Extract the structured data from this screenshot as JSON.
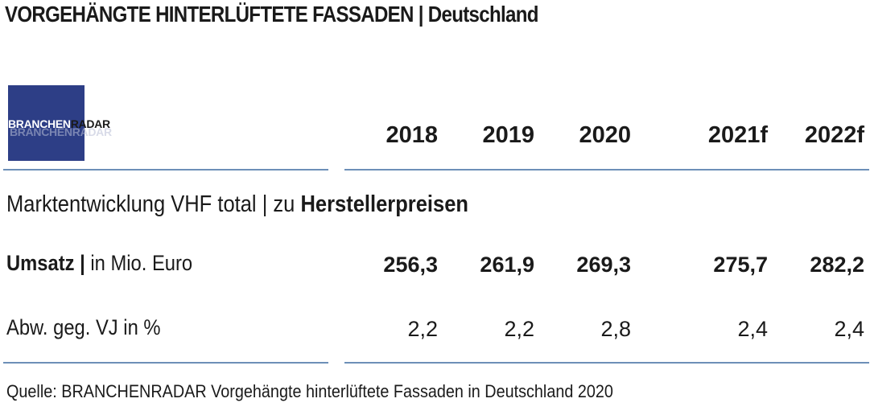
{
  "header": {
    "title_main": "VORGEHÄNGTE HINTERLÜFTETE FASSADEN",
    "title_sep": " | ",
    "title_region": "Deutschland"
  },
  "logo": {
    "part1": "BRANCHEN",
    "part2": "RADAR",
    "colors": {
      "box": "#2d3e86"
    }
  },
  "table": {
    "years": [
      "2018",
      "2019",
      "2020",
      "2021f",
      "2022f"
    ],
    "section_label_prefix": "Marktentwicklung VHF total | zu ",
    "section_label_bold": "Herstellerpreisen",
    "rows": [
      {
        "label_bold": "Umsatz |",
        "label_rest": " in Mio. Euro",
        "values": [
          "256,3",
          "261,9",
          "269,3",
          "275,7",
          "282,2"
        ]
      },
      {
        "label": "Abw. geg. VJ in %",
        "values": [
          "2,2",
          "2,2",
          "2,8",
          "2,4",
          "2,4"
        ]
      }
    ]
  },
  "footer": {
    "source": "Quelle: BRANCHENRADAR Vorgehängte hinterlüftete Fassaden in Deutschland 2020"
  },
  "colors": {
    "rule": "#6d8fb8",
    "text": "#1a1a1a"
  }
}
